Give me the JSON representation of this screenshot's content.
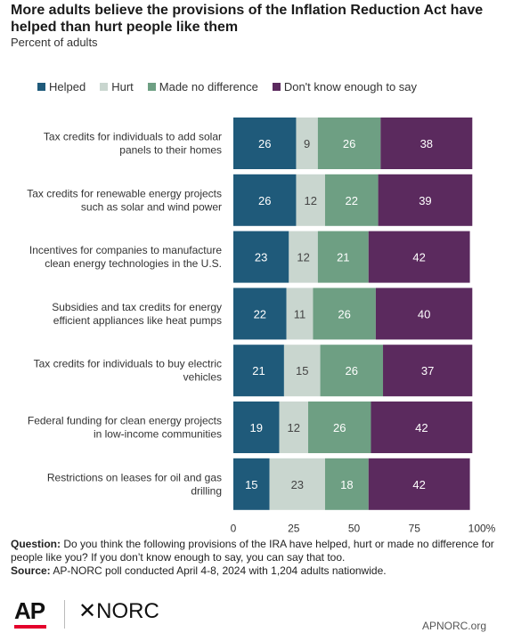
{
  "title": "More adults believe the provisions of the Inflation Reduction Act have helped than hurt people like them",
  "subtitle": "Percent of adults",
  "colors": {
    "helped": "#1f5a7a",
    "hurt": "#c9d6cf",
    "no_difference": "#6e9f83",
    "dont_know": "#5b2a5e"
  },
  "chart_data": {
    "type": "bar",
    "orientation": "horizontal",
    "stacked": true,
    "categories": [
      "Tax credits for individuals to add solar panels to their homes",
      "Tax credits for renewable energy projects such as solar and wind power",
      "Incentives for companies to manufacture clean energy technologies in the U.S.",
      "Subsidies and tax credits for energy efficient appliances like heat pumps",
      "Tax credits for individuals to buy electric vehicles",
      "Federal funding for clean energy projects in low-income communities",
      "Restrictions on leases for oil and gas drilling"
    ],
    "category_lines": [
      [
        "Tax credits for individuals to add solar",
        "panels to their homes"
      ],
      [
        "Tax credits for renewable energy projects",
        "such as solar and wind power"
      ],
      [
        "Incentives for companies to manufacture",
        "clean energy technologies in the U.S."
      ],
      [
        "Subsidies and tax credits for energy",
        "efficient appliances like heat pumps"
      ],
      [
        "Tax credits for individuals to buy electric",
        "vehicles"
      ],
      [
        "Federal funding for clean energy projects",
        "in low-income communities"
      ],
      [
        "Restrictions on leases for oil and gas",
        "drilling"
      ]
    ],
    "series": [
      {
        "name": "Helped",
        "color": "#1f5a7a",
        "values": [
          26,
          26,
          23,
          22,
          21,
          19,
          15
        ]
      },
      {
        "name": "Hurt",
        "color": "#c9d6cf",
        "values": [
          9,
          12,
          12,
          11,
          15,
          12,
          23
        ]
      },
      {
        "name": "Made no difference",
        "color": "#6e9f83",
        "values": [
          26,
          22,
          21,
          26,
          26,
          26,
          18
        ]
      },
      {
        "name": "Don't know enough to say",
        "color": "#5b2a5e",
        "values": [
          38,
          39,
          42,
          40,
          37,
          42,
          42
        ]
      }
    ],
    "xlim": [
      0,
      100
    ],
    "xticks": [
      "0",
      "25",
      "50",
      "75",
      "100%"
    ],
    "legend_position": "top"
  },
  "footer": {
    "question_label": "Question:",
    "question_text": " Do you think the following provisions of the IRA have helped, hurt or made no difference for people like you? If you don’t know enough to say, you can say that too.",
    "source_label": "Source:",
    "source_text": " AP-NORC poll conducted April 4-8, 2024 with 1,204 adults nationwide."
  },
  "logos": {
    "ap": "AP",
    "norc": "✕NORC"
  },
  "site": "APNORC.org"
}
